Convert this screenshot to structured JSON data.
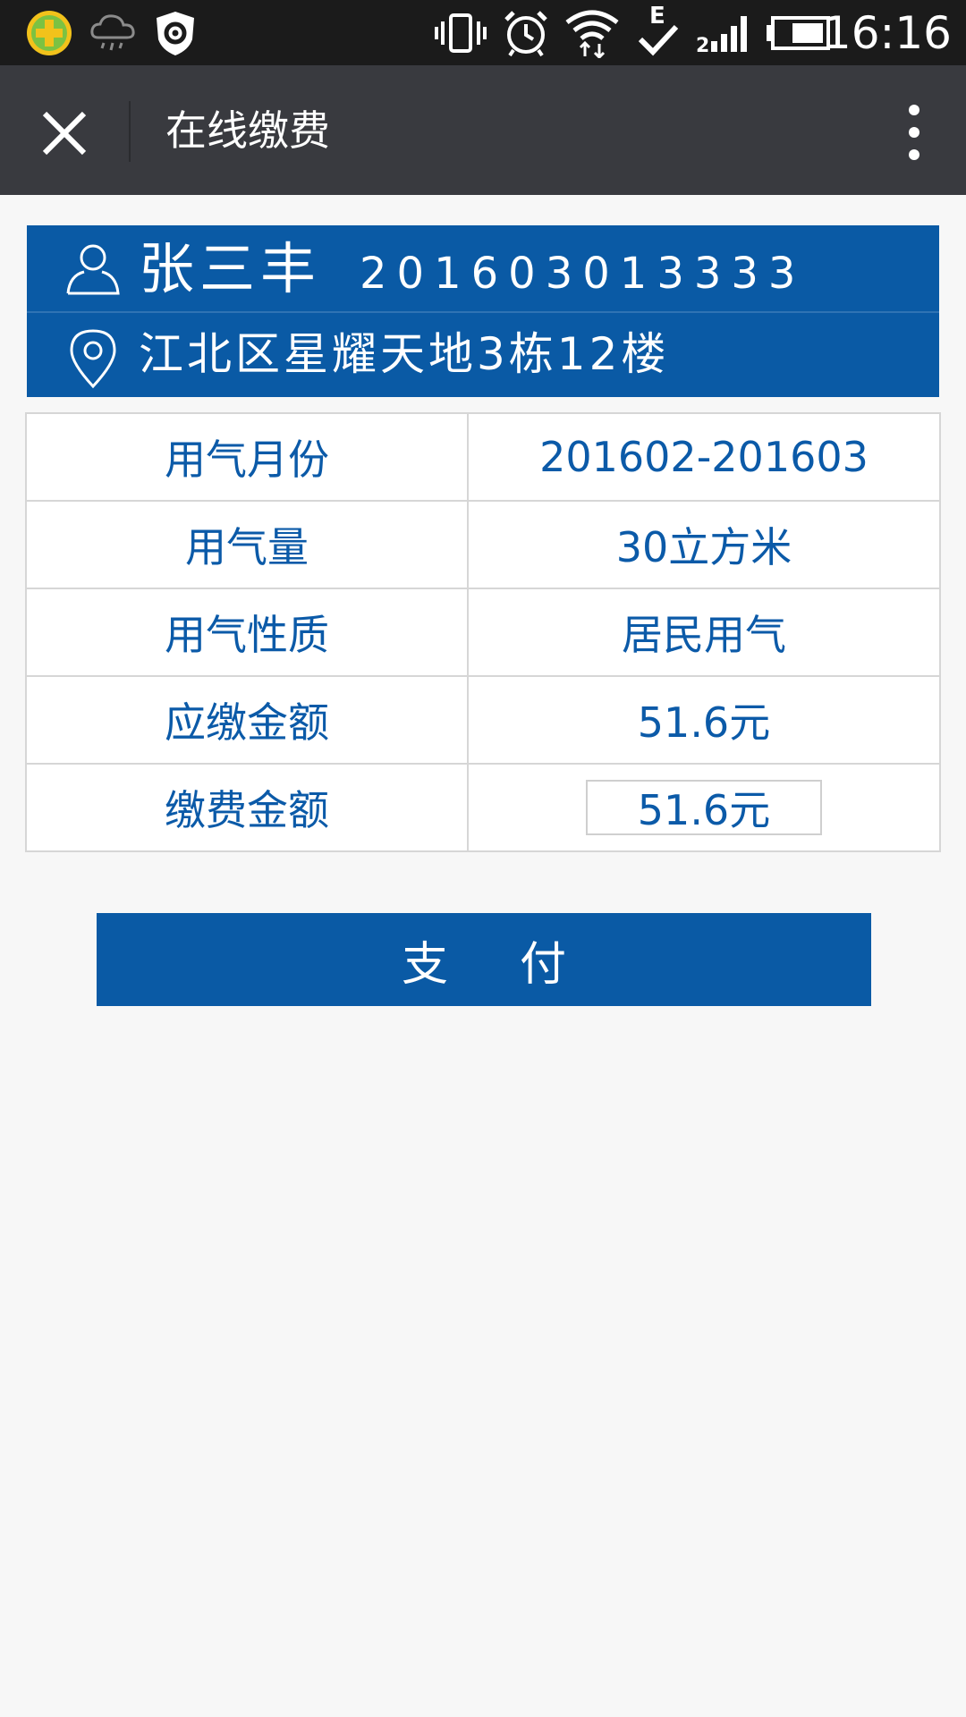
{
  "status_bar": {
    "time": "16:16",
    "network_type": "E",
    "icons": [
      "app-360-icon",
      "cloud-rain-icon",
      "shield-gear-icon",
      "vibrate-icon",
      "alarm-icon",
      "wifi-icon",
      "network-e-icon",
      "signal-icon",
      "battery-icon"
    ]
  },
  "header": {
    "title": "在线缴费",
    "close_icon": "close-icon",
    "more_icon": "more-vertical-icon"
  },
  "user": {
    "name": "张三丰",
    "account": "201603013333",
    "address": "江北区星耀天地3栋12楼",
    "user_icon": "user-icon",
    "location_icon": "location-pin-icon"
  },
  "bill": {
    "rows": [
      {
        "label": "用气月份",
        "value": "201602-201603"
      },
      {
        "label": "用气量",
        "value": "30立方米"
      },
      {
        "label": "用气性质",
        "value": "居民用气"
      },
      {
        "label": "应缴金额",
        "value": "51.6元"
      }
    ],
    "pay_amount": {
      "label": "缴费金额",
      "value": "51.6元"
    }
  },
  "actions": {
    "pay_label": "支付"
  },
  "colors": {
    "primary": "#0a5aa5",
    "header_bg": "#393a3f",
    "status_bg": "#1b1b1b",
    "text_blue": "#0b5aa8"
  }
}
